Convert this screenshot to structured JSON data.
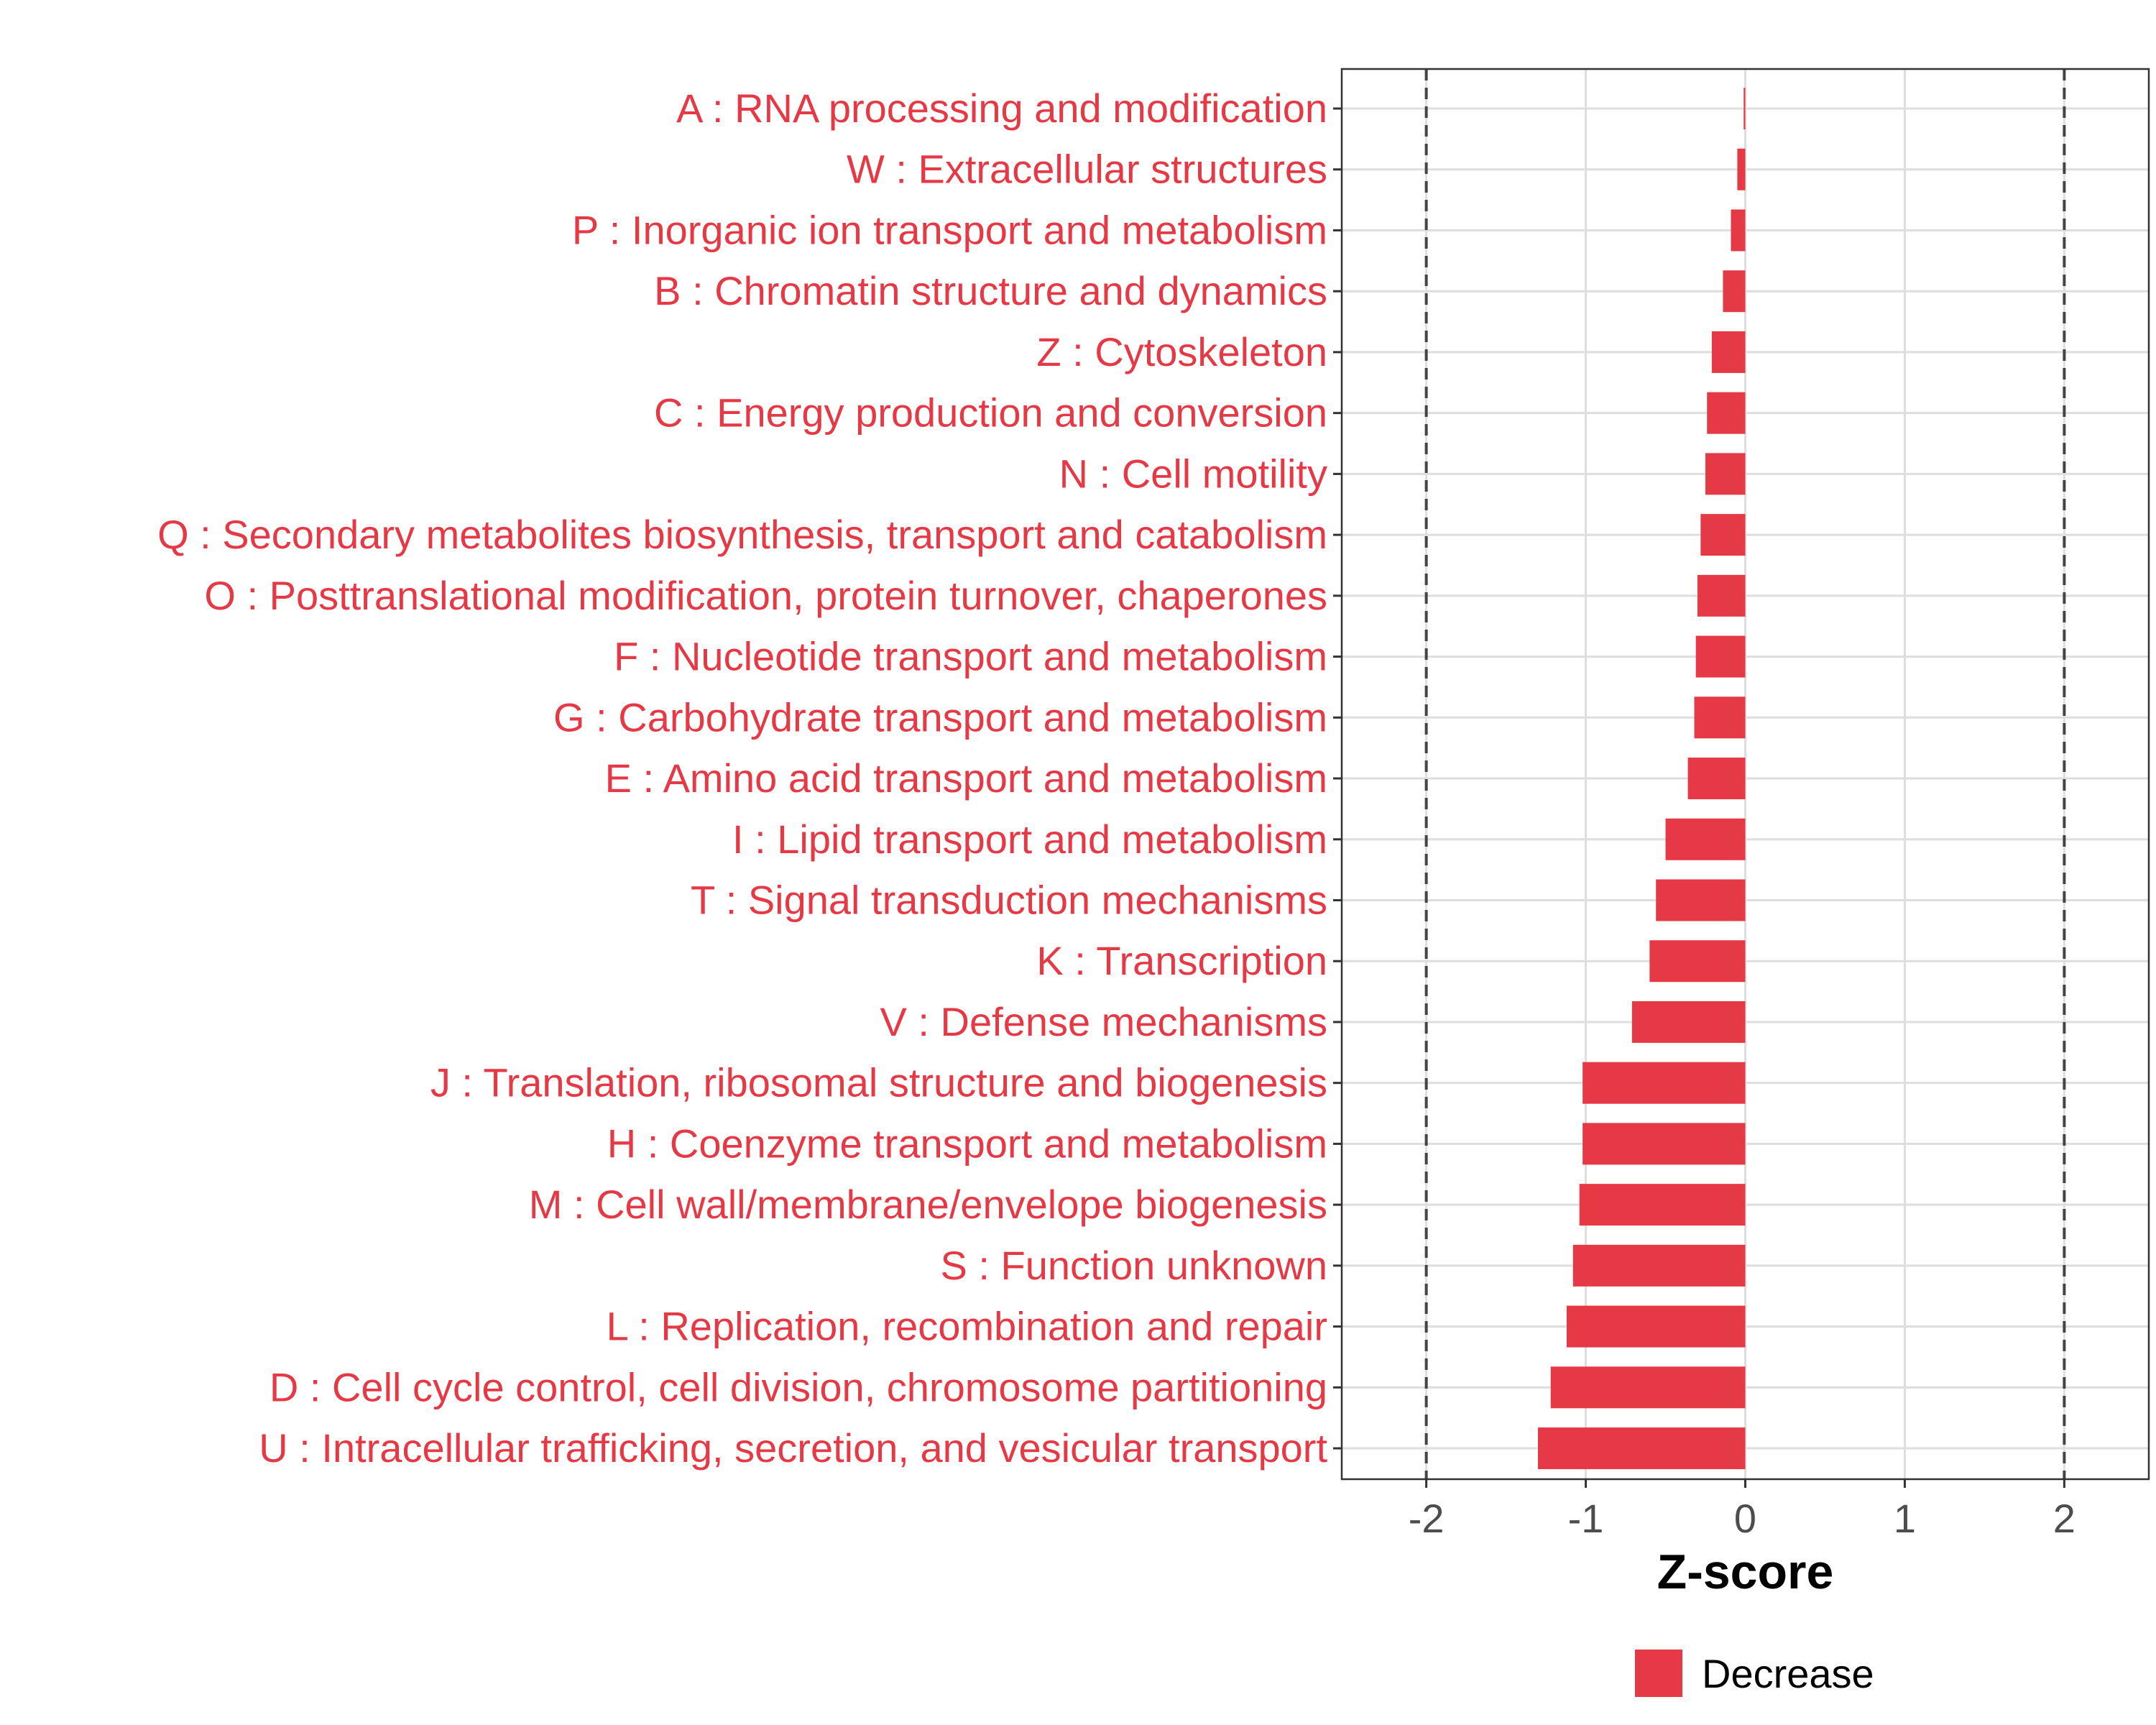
{
  "chart_data": {
    "type": "bar",
    "orientation": "horizontal",
    "categories": [
      "A : RNA processing and modification",
      "W : Extracellular structures",
      "P : Inorganic ion transport and metabolism",
      "B : Chromatin structure and dynamics",
      "Z : Cytoskeleton",
      "C : Energy production and conversion",
      "N : Cell motility",
      "Q : Secondary metabolites biosynthesis, transport and catabolism",
      "O : Posttranslational modification, protein turnover, chaperones",
      "F : Nucleotide transport and metabolism",
      "G : Carbohydrate transport and metabolism",
      "E : Amino acid transport and metabolism",
      "I : Lipid transport and metabolism",
      "T : Signal transduction mechanisms",
      "K : Transcription",
      "V : Defense mechanisms",
      "J : Translation, ribosomal structure and biogenesis",
      "H : Coenzyme transport and metabolism",
      "M : Cell wall/membrane/envelope biogenesis",
      "S : Function unknown",
      "L : Replication, recombination and repair",
      "D : Cell cycle control, cell division, chromosome partitioning",
      "U : Intracellular trafficking, secretion, and vesicular transport"
    ],
    "series": [
      {
        "name": "Decrease",
        "color": "#E63946",
        "values": [
          -0.01,
          -0.05,
          -0.09,
          -0.14,
          -0.21,
          -0.24,
          -0.25,
          -0.28,
          -0.3,
          -0.31,
          -0.32,
          -0.36,
          -0.5,
          -0.56,
          -0.6,
          -0.71,
          -1.02,
          -1.02,
          -1.04,
          -1.08,
          -1.12,
          -1.22,
          -1.3
        ]
      }
    ],
    "xlabel": "Z-score",
    "ylabel": "",
    "xlim": [
      -2.53,
      2.53
    ],
    "xticks": [
      -2,
      -1,
      0,
      1,
      2
    ],
    "xtick_labels": [
      "-2",
      "-1",
      "0",
      "1",
      "2"
    ],
    "reference_lines": [
      -2,
      2
    ],
    "grid": true,
    "legend": {
      "position": "bottom",
      "entries": [
        {
          "label": "Decrease",
          "color": "#E63946"
        }
      ]
    }
  }
}
